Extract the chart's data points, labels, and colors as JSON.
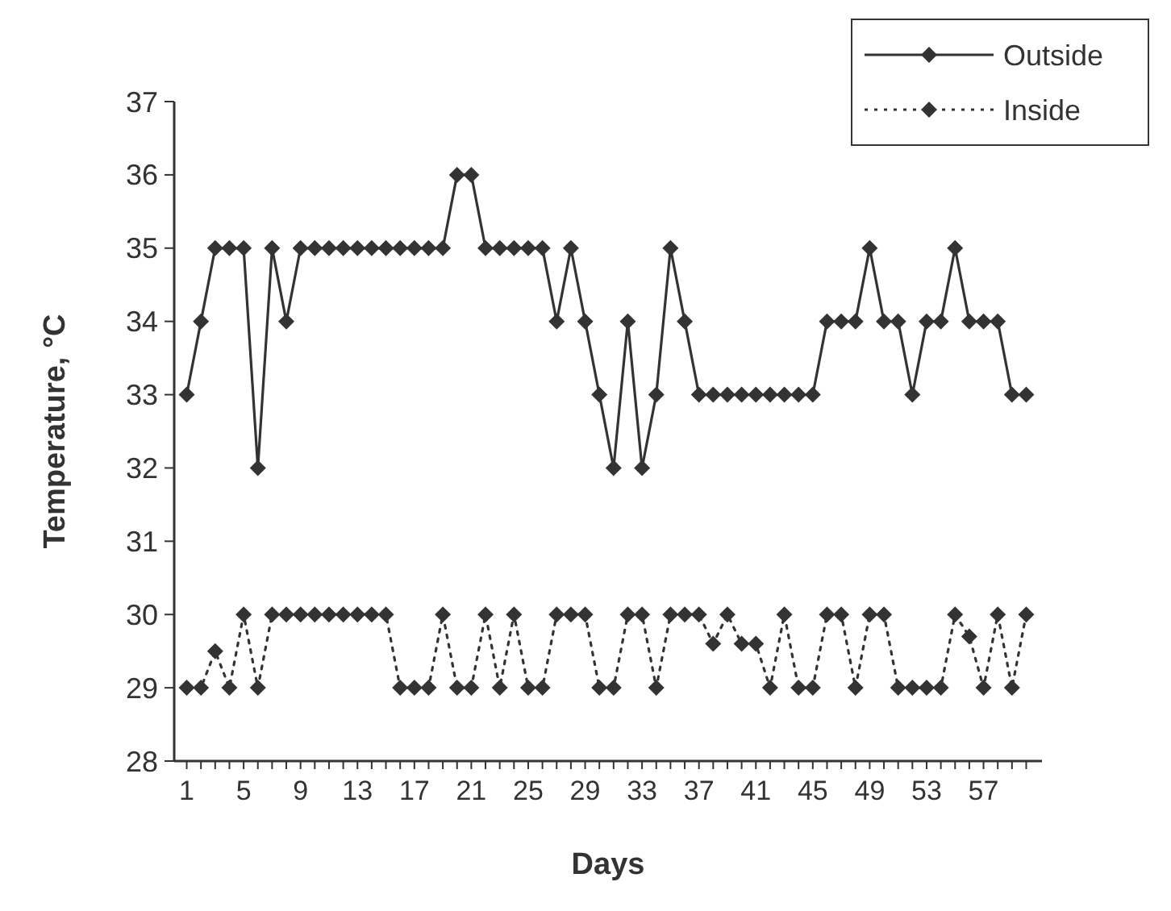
{
  "chart_data": {
    "type": "line",
    "xlabel": "Days",
    "ylabel": "Temperature, °C",
    "categories": [
      "1",
      null,
      null,
      null,
      "5",
      null,
      null,
      null,
      "9",
      null,
      null,
      null,
      "13",
      null,
      null,
      null,
      "17",
      null,
      null,
      null,
      "21",
      null,
      null,
      null,
      "25",
      null,
      null,
      null,
      "29",
      null,
      null,
      null,
      "33",
      null,
      null,
      null,
      "37",
      null,
      null,
      null,
      "41",
      null,
      null,
      null,
      "45",
      null,
      null,
      null,
      "49",
      null,
      null,
      null,
      "53",
      null,
      null,
      null,
      "57",
      null,
      null,
      null
    ],
    "series": [
      {
        "name": "Outside",
        "color": "#333333",
        "line_style": "solid",
        "values": [
          33,
          34,
          35,
          35,
          35,
          32,
          35,
          34,
          35,
          35,
          35,
          35,
          35,
          35,
          35,
          35,
          35,
          35,
          35,
          36,
          36,
          35,
          35,
          35,
          35,
          35,
          34,
          35,
          34,
          33,
          32,
          34,
          32,
          33,
          35,
          34,
          33,
          33,
          33,
          33,
          33,
          33,
          33,
          33,
          33,
          34,
          34,
          34,
          35,
          34,
          34,
          33,
          34,
          34,
          35,
          34,
          34,
          34,
          33,
          33
        ]
      },
      {
        "name": "Inside",
        "color": "#333333",
        "line_style": "dotted",
        "values": [
          29,
          29,
          29.5,
          29,
          30,
          29,
          30,
          30,
          30,
          30,
          30,
          30,
          30,
          30,
          30,
          29,
          29,
          29,
          30,
          29,
          29,
          30,
          29,
          30,
          29,
          29,
          30,
          30,
          30,
          29,
          29,
          30,
          30,
          29,
          30,
          30,
          30,
          29.6,
          30,
          29.6,
          29.6,
          29,
          30,
          29,
          29,
          30,
          30,
          29,
          30,
          30,
          29,
          29,
          29,
          29,
          30,
          29.7,
          29,
          30,
          29,
          30
        ]
      }
    ],
    "ylim": [
      28,
      37
    ],
    "yticks": [
      28,
      29,
      30,
      31,
      32,
      33,
      34,
      35,
      36,
      37
    ],
    "marker": "diamond",
    "legend": "top right",
    "grid": false
  }
}
